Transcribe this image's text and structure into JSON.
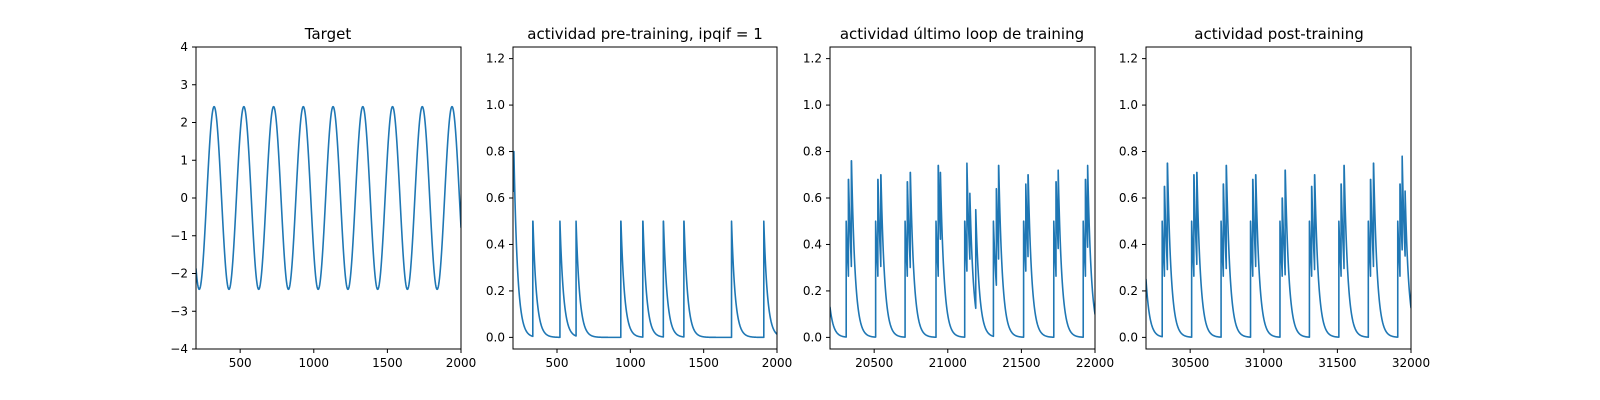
{
  "figure": {
    "background": "#ffffff",
    "line_color": "#1f77b4"
  },
  "chart_data": [
    {
      "type": "line",
      "title": "Target",
      "xlabel": "",
      "ylabel": "",
      "xlim": [
        200,
        2000
      ],
      "ylim": [
        -4,
        4
      ],
      "xticks": [
        500,
        1000,
        1500,
        2000
      ],
      "xtick_labels": [
        "500",
        "1000",
        "1500",
        "2000"
      ],
      "yticks": [
        -4,
        -3,
        -2,
        -1,
        0,
        1,
        2,
        3,
        4
      ],
      "ytick_labels": [
        "−4",
        "−3",
        "−2",
        "−1",
        "0",
        "1",
        "2",
        "3",
        "4"
      ],
      "grid": false,
      "legend": "none",
      "series": [
        {
          "kind": "sine",
          "amplitude": 2.42,
          "period": 202,
          "x_start": 200,
          "x_end": 2000,
          "peaks_at": [
            323,
            525,
            727,
            929,
            1131,
            1333,
            1535,
            1737,
            1939
          ],
          "end_value": -0.9
        }
      ]
    },
    {
      "type": "line",
      "title": "actividad pre-training, ipqif = 1",
      "xlabel": "",
      "ylabel": "",
      "xlim": [
        200,
        2000
      ],
      "ylim": [
        -0.05,
        1.25
      ],
      "xticks": [
        500,
        1000,
        1500,
        2000
      ],
      "xtick_labels": [
        "500",
        "1000",
        "1500",
        "2000"
      ],
      "yticks": [
        0,
        0.2,
        0.4,
        0.6,
        0.8,
        1.0,
        1.2
      ],
      "ytick_labels": [
        "0.0",
        "0.2",
        "0.4",
        "0.6",
        "0.8",
        "1.0",
        "1.2"
      ],
      "grid": false,
      "legend": "none",
      "series": [
        {
          "kind": "spikes",
          "x_start": 200,
          "x_end": 2000,
          "decay": 25,
          "initial": 0.8,
          "spike_times": [
            205,
            335,
            520,
            630,
            935,
            1085,
            1225,
            1365,
            1690,
            1910
          ],
          "spike_heights": [
            0.8,
            0.5,
            0.5,
            0.5,
            0.5,
            0.5,
            0.5,
            0.5,
            0.5,
            0.5
          ]
        }
      ]
    },
    {
      "type": "line",
      "title": "actividad último loop de training",
      "xlabel": "",
      "ylabel": "",
      "xlim": [
        20200,
        22000
      ],
      "ylim": [
        -0.05,
        1.25
      ],
      "xticks": [
        20500,
        21000,
        21500,
        22000
      ],
      "xtick_labels": [
        "20500",
        "21000",
        "21500",
        "22000"
      ],
      "yticks": [
        0,
        0.2,
        0.4,
        0.6,
        0.8,
        1.0,
        1.2
      ],
      "ytick_labels": [
        "0.0",
        "0.2",
        "0.4",
        "0.6",
        "0.8",
        "1.0",
        "1.2"
      ],
      "grid": false,
      "legend": "none",
      "series": [
        {
          "kind": "spikes",
          "x_start": 20200,
          "x_end": 22000,
          "decay": 25,
          "initial": 0.13,
          "spike_times": [
            20310,
            20325,
            20345,
            20510,
            20525,
            20545,
            20710,
            20725,
            20745,
            20920,
            20935,
            20950,
            21115,
            21130,
            21150,
            21190,
            21310,
            21330,
            21345,
            21515,
            21530,
            21545,
            21720,
            21735,
            21750,
            21920,
            21935,
            21950
          ],
          "spike_heights": [
            0.5,
            0.68,
            0.76,
            0.5,
            0.68,
            0.7,
            0.5,
            0.67,
            0.71,
            0.5,
            0.74,
            0.71,
            0.5,
            0.75,
            0.62,
            0.55,
            0.5,
            0.64,
            0.74,
            0.5,
            0.66,
            0.7,
            0.5,
            0.67,
            0.72,
            0.5,
            0.68,
            0.74
          ]
        }
      ]
    },
    {
      "type": "line",
      "title": "actividad post-training",
      "xlabel": "",
      "ylabel": "",
      "xlim": [
        30200,
        32000
      ],
      "ylim": [
        -0.05,
        1.25
      ],
      "xticks": [
        30500,
        31000,
        31500,
        32000
      ],
      "xtick_labels": [
        "30500",
        "31000",
        "31500",
        "32000"
      ],
      "yticks": [
        0,
        0.2,
        0.4,
        0.6,
        0.8,
        1.0,
        1.2
      ],
      "ytick_labels": [
        "0.0",
        "0.2",
        "0.4",
        "0.6",
        "0.8",
        "1.0",
        "1.2"
      ],
      "grid": false,
      "legend": "none",
      "series": [
        {
          "kind": "spikes",
          "x_start": 30200,
          "x_end": 32000,
          "decay": 25,
          "initial": 0.25,
          "spike_times": [
            30310,
            30325,
            30345,
            30510,
            30525,
            30545,
            30710,
            30725,
            30745,
            30910,
            30925,
            30945,
            31110,
            31125,
            31145,
            31310,
            31325,
            31345,
            31510,
            31525,
            31545,
            31710,
            31725,
            31745,
            31910,
            31925,
            31940,
            31960
          ],
          "spike_heights": [
            0.5,
            0.65,
            0.75,
            0.5,
            0.7,
            0.71,
            0.5,
            0.66,
            0.74,
            0.5,
            0.68,
            0.7,
            0.5,
            0.6,
            0.72,
            0.5,
            0.65,
            0.7,
            0.5,
            0.66,
            0.74,
            0.5,
            0.68,
            0.75,
            0.5,
            0.66,
            0.78,
            0.63
          ]
        }
      ]
    }
  ]
}
